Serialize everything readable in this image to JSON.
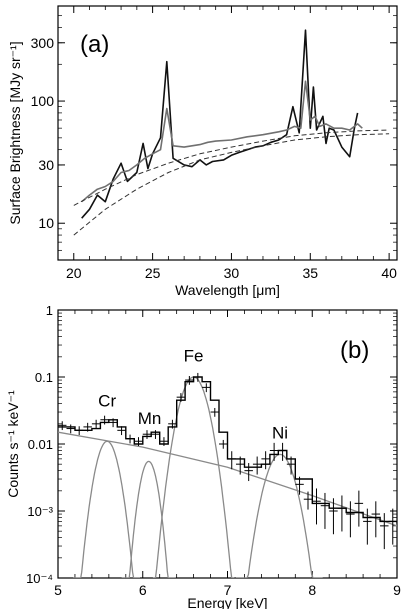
{
  "chart_data": [
    {
      "panel_label": "(a)",
      "type": "line",
      "xlabel": "Wavelength [μm]",
      "ylabel": "Surface Brightness [MJy sr⁻¹]",
      "xlim": [
        19,
        40.5
      ],
      "ylim": [
        5,
        600
      ],
      "yscale": "log",
      "xticks": [
        "20",
        "25",
        "30",
        "35",
        "40"
      ],
      "yticks": [
        "10",
        "30",
        "100",
        "300"
      ],
      "series": [
        {
          "style": "black",
          "color": "#111111",
          "x": [
            20.5,
            21.0,
            21.5,
            22.0,
            22.5,
            23.0,
            23.4,
            24.0,
            24.4,
            24.7,
            25.0,
            25.5,
            25.9,
            26.3,
            27.0,
            27.5,
            28.0,
            28.4,
            28.8,
            29.5,
            30.0,
            30.5,
            31.0,
            31.5,
            32.0,
            32.5,
            33.0,
            33.5,
            33.9,
            34.3,
            34.7,
            35.0,
            35.2,
            35.4,
            35.8,
            36.0,
            36.2,
            36.5,
            37.0,
            37.5,
            37.8,
            38.0
          ],
          "y": [
            11,
            13,
            17,
            15,
            23,
            31,
            22,
            26,
            45,
            28,
            37,
            50,
            210,
            34,
            30,
            29,
            33,
            30,
            32,
            33,
            36,
            38,
            40,
            42,
            43,
            46,
            48,
            53,
            90,
            55,
            380,
            60,
            130,
            58,
            75,
            45,
            60,
            58,
            42,
            35,
            60,
            80
          ]
        },
        {
          "style": "gray",
          "color": "#707070",
          "x": [
            20.5,
            21.0,
            21.5,
            22.0,
            22.5,
            23.0,
            23.5,
            24.0,
            24.5,
            25.0,
            25.5,
            25.9,
            26.3,
            27.0,
            28.0,
            28.5,
            29.0,
            30.0,
            31.0,
            32.0,
            33.0,
            33.5,
            34.0,
            34.4,
            34.7,
            35.0,
            35.3,
            35.6,
            36.0,
            36.5,
            37.0,
            37.5,
            38.0,
            38.3
          ],
          "y": [
            15,
            17,
            19,
            20,
            22,
            26,
            27,
            30,
            34,
            37,
            40,
            87,
            43,
            42,
            44,
            46,
            47,
            48,
            51,
            53,
            56,
            58,
            62,
            60,
            145,
            70,
            75,
            62,
            65,
            60,
            60,
            58,
            65,
            60
          ]
        },
        {
          "style": "dashed-continuum-1",
          "color": "#333333",
          "x": [
            20.0,
            22.0,
            24.0,
            26.0,
            28.0,
            30.0,
            32.0,
            34.0,
            36.0,
            38.0,
            40.0
          ],
          "y": [
            8,
            13,
            19,
            26,
            33,
            38,
            43,
            48,
            51,
            53,
            54
          ]
        },
        {
          "style": "dashed-continuum-2",
          "color": "#333333",
          "x": [
            20.0,
            22.0,
            24.0,
            26.0,
            28.0,
            30.0,
            32.0,
            34.0,
            36.0,
            38.0,
            40.0
          ],
          "y": [
            14,
            19,
            25,
            31,
            37,
            42,
            47,
            52,
            55,
            57,
            58
          ]
        }
      ]
    },
    {
      "panel_label": "(b)",
      "type": "line",
      "xlabel": "Energy [keV]",
      "ylabel": "Counts s⁻¹ keV⁻¹",
      "xlim": [
        5,
        9
      ],
      "ylim": [
        0.0001,
        1
      ],
      "yscale": "log",
      "xticks": [
        "5",
        "6",
        "7",
        "8",
        "9"
      ],
      "yticks": [
        "10⁻⁴",
        "10⁻³",
        "0.01",
        "0.1",
        "1"
      ],
      "annotations": [
        {
          "text": "Cr",
          "x": 5.58,
          "y": 0.036
        },
        {
          "text": "Mn",
          "x": 6.08,
          "y": 0.02
        },
        {
          "text": "Fe",
          "x": 6.6,
          "y": 0.17
        },
        {
          "text": "Ni",
          "x": 7.62,
          "y": 0.012
        }
      ],
      "model": {
        "x": [
          5.0,
          5.2,
          5.4,
          5.5,
          5.6,
          5.7,
          5.8,
          5.9,
          6.0,
          6.1,
          6.2,
          6.3,
          6.4,
          6.5,
          6.6,
          6.7,
          6.8,
          6.9,
          7.0,
          7.2,
          7.4,
          7.5,
          7.6,
          7.7,
          7.8,
          8.0,
          8.2,
          8.4,
          8.6,
          8.8,
          9.0
        ],
        "y": [
          0.018,
          0.016,
          0.017,
          0.021,
          0.023,
          0.018,
          0.012,
          0.01,
          0.013,
          0.015,
          0.01,
          0.018,
          0.045,
          0.085,
          0.1,
          0.085,
          0.045,
          0.015,
          0.006,
          0.0045,
          0.005,
          0.007,
          0.008,
          0.006,
          0.003,
          0.0013,
          0.0011,
          0.00095,
          0.0008,
          0.0007,
          0.00065
        ]
      },
      "components": [
        {
          "name": "continuum",
          "x": [
            5.0,
            6.0,
            7.0,
            8.0,
            9.0
          ],
          "y": [
            0.015,
            0.009,
            0.0045,
            0.0017,
            0.0006
          ]
        },
        {
          "name": "Cr line",
          "center": 5.58,
          "peak": 0.011,
          "sigma": 0.1
        },
        {
          "name": "Mn line",
          "center": 6.07,
          "peak": 0.0055,
          "sigma": 0.08
        },
        {
          "name": "Fe line",
          "center": 6.6,
          "peak": 0.1,
          "sigma": 0.12
        },
        {
          "name": "Ni line",
          "center": 7.62,
          "peak": 0.007,
          "sigma": 0.13
        }
      ],
      "data_points": {
        "x": [
          5.05,
          5.15,
          5.25,
          5.35,
          5.45,
          5.55,
          5.65,
          5.75,
          5.85,
          5.95,
          6.05,
          6.15,
          6.25,
          6.35,
          6.45,
          6.55,
          6.65,
          6.75,
          6.85,
          6.95,
          7.05,
          7.15,
          7.25,
          7.35,
          7.45,
          7.55,
          7.65,
          7.75,
          7.85,
          7.95,
          8.05,
          8.15,
          8.25,
          8.35,
          8.45,
          8.55,
          8.65,
          8.75,
          8.85,
          8.95
        ],
        "y": [
          0.019,
          0.017,
          0.016,
          0.018,
          0.02,
          0.023,
          0.021,
          0.016,
          0.012,
          0.011,
          0.014,
          0.014,
          0.011,
          0.02,
          0.05,
          0.09,
          0.1,
          0.07,
          0.03,
          0.01,
          0.006,
          0.005,
          0.004,
          0.005,
          0.006,
          0.008,
          0.008,
          0.005,
          0.0025,
          0.0015,
          0.0014,
          0.0012,
          0.001,
          0.0011,
          0.0009,
          0.0013,
          0.0007,
          0.0009,
          0.0006,
          0.0007
        ]
      }
    }
  ]
}
